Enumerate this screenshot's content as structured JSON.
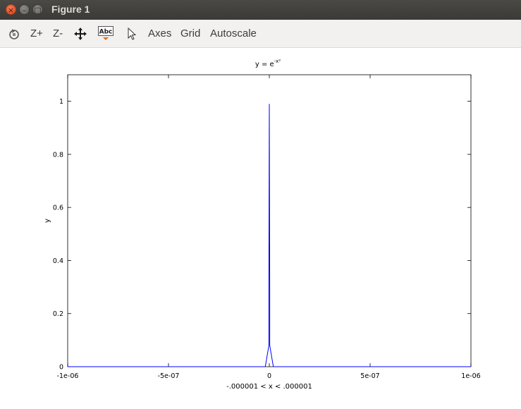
{
  "window": {
    "title": "Figure 1",
    "close_glyph": "×",
    "minimize_glyph": "–",
    "maximize_glyph": "□"
  },
  "toolbar": {
    "zoom_in_label": "Z+",
    "zoom_out_label": "Z-",
    "insert_text_icon_label": "Abc",
    "axes_label": "Axes",
    "grid_label": "Grid",
    "autoscale_label": "Autoscale"
  },
  "icons": {
    "rotate": "rotate-icon",
    "pan": "pan-icon",
    "insert_text": "insert-text-icon",
    "select": "pointer-icon"
  },
  "chart_data": {
    "type": "line",
    "title_base": "y = e",
    "title_exponent": "-x²",
    "xlabel": "-.000001 < x < .000001",
    "ylabel": "y",
    "xlim": [
      -1e-06,
      1e-06
    ],
    "ylim": [
      0,
      1.1
    ],
    "grid": false,
    "x_ticks": [
      {
        "value": -1e-06,
        "label": "-1e-06"
      },
      {
        "value": -5e-07,
        "label": "-5e-07"
      },
      {
        "value": 0,
        "label": "0"
      },
      {
        "value": 5e-07,
        "label": "5e-07"
      },
      {
        "value": 1e-06,
        "label": "1e-06"
      }
    ],
    "y_ticks": [
      {
        "value": 0,
        "label": "0"
      },
      {
        "value": 0.2,
        "label": "0.2"
      },
      {
        "value": 0.4,
        "label": "0.4"
      },
      {
        "value": 0.6,
        "label": "0.6"
      },
      {
        "value": 0.8,
        "label": "0.8"
      },
      {
        "value": 1,
        "label": "1"
      }
    ],
    "series": [
      {
        "name": "y",
        "color": "#0000ff",
        "x": [
          -1e-06,
          -2e-08,
          -1e-09,
          -2e-10,
          0,
          2e-10,
          1e-09,
          2e-08,
          1e-06
        ],
        "y": [
          0,
          0,
          0.08,
          0.3,
          0.99,
          0.3,
          0.08,
          0,
          0
        ]
      }
    ]
  }
}
